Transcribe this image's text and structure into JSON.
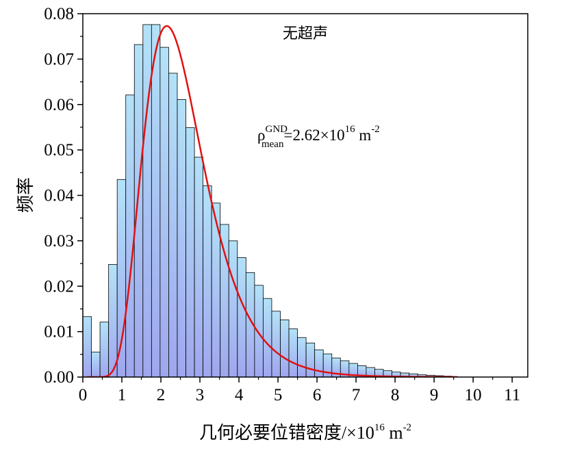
{
  "chart_data": {
    "type": "histogram",
    "title": "无超声",
    "xlabel": "几何必要位错密度/×10",
    "xlabel_exp": "16",
    "xlabel_unit": " m",
    "xlabel_unit_exp": "-2",
    "ylabel": "频率",
    "xlim": [
      0,
      11.4
    ],
    "ylim": [
      0,
      0.08
    ],
    "xticks": [
      0,
      1,
      2,
      3,
      4,
      5,
      6,
      7,
      8,
      9,
      10,
      11
    ],
    "yticks": [
      0.0,
      0.01,
      0.02,
      0.03,
      0.04,
      0.05,
      0.06,
      0.07,
      0.08
    ],
    "ytick_labels": [
      "0.00",
      "0.01",
      "0.02",
      "0.03",
      "0.04",
      "0.05",
      "0.06",
      "0.07",
      "0.08"
    ],
    "bin_width": 0.22,
    "bin_start": 0,
    "values": [
      0.0133,
      0.0055,
      0.0121,
      0.0248,
      0.0435,
      0.0621,
      0.0732,
      0.0776,
      0.0776,
      0.0726,
      0.0669,
      0.0611,
      0.0549,
      0.0484,
      0.0421,
      0.0383,
      0.0336,
      0.03,
      0.0263,
      0.023,
      0.0202,
      0.0173,
      0.0145,
      0.0126,
      0.0106,
      0.0087,
      0.0075,
      0.006,
      0.0051,
      0.0042,
      0.0036,
      0.003,
      0.0025,
      0.0021,
      0.0017,
      0.0014,
      0.0011,
      0.0009,
      0.0007,
      0.0005,
      0.0004,
      0.0003,
      0.0002
    ],
    "fit": {
      "type": "lognormal",
      "mode": 2.15,
      "peak": 0.0773,
      "x_range": [
        0.1,
        9.6
      ],
      "color": "#e01010"
    },
    "annotation": {
      "rho": "ρ",
      "sup": "GND",
      "sub": "mean",
      "value": "=2.62×10",
      "value_exp": "16",
      "unit": " m",
      "unit_exp": "-2"
    },
    "bar_fill_top": "#b3e2f8",
    "bar_fill_bottom": "#9fa6ee",
    "bar_stroke": "#000000",
    "grid": false,
    "legend": "none"
  }
}
